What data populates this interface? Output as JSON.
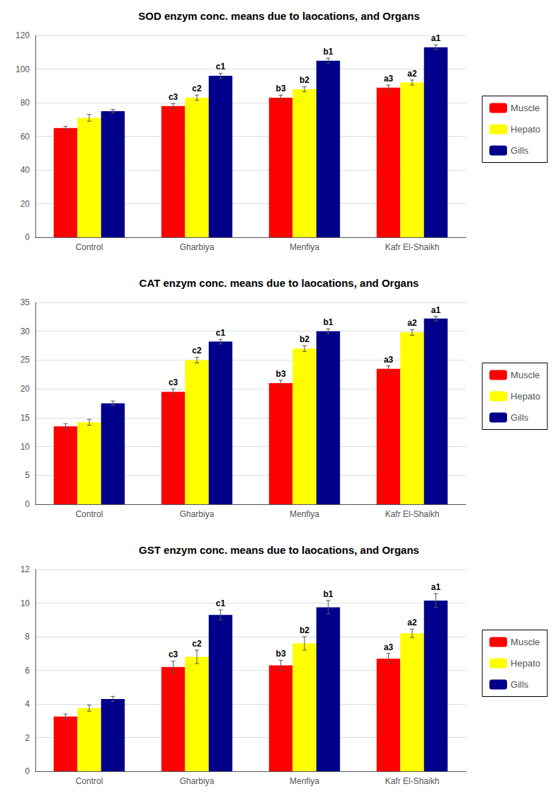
{
  "chart_data": [
    {
      "type": "bar",
      "title": "SOD enzym conc. means due to laocations, and Organs",
      "categories": [
        "Control",
        "Gharbiya",
        "Menfiya",
        "Kafr El-Shaikh"
      ],
      "series": [
        {
          "name": "Muscle",
          "color": "#FF0000",
          "values": [
            65,
            78,
            83,
            89
          ],
          "errors": [
            1.0,
            1.5,
            1.5,
            1.5
          ],
          "annotations": [
            null,
            "c3",
            "b3",
            "a3"
          ]
        },
        {
          "name": "Hepato",
          "color": "#FFFF00",
          "values": [
            71,
            83,
            88,
            92
          ],
          "errors": [
            2.0,
            1.5,
            1.5,
            1.5
          ],
          "annotations": [
            null,
            "c2",
            "b2",
            "a2"
          ]
        },
        {
          "name": "Gills",
          "color": "#00008B",
          "values": [
            75,
            96,
            105,
            113
          ],
          "errors": [
            1.0,
            1.5,
            1.5,
            1.5
          ],
          "annotations": [
            null,
            "c1",
            "b1",
            "a1"
          ]
        }
      ],
      "ylim": [
        0,
        120
      ],
      "yticks": [
        0,
        20,
        40,
        60,
        80,
        100,
        120
      ],
      "grid": true,
      "legend": "right"
    },
    {
      "type": "bar",
      "title": "CAT enzym conc. means due to laocations, and Organs",
      "categories": [
        "Control",
        "Gharbiya",
        "Menfiya",
        "Kafr El-Shaikh"
      ],
      "series": [
        {
          "name": "Muscle",
          "color": "#FF0000",
          "values": [
            13.5,
            19.5,
            21.0,
            23.5
          ],
          "errors": [
            0.5,
            0.5,
            0.5,
            0.5
          ],
          "annotations": [
            null,
            "c3",
            "b3",
            "a3"
          ]
        },
        {
          "name": "Hepato",
          "color": "#FFFF00",
          "values": [
            14.2,
            25.0,
            27.0,
            29.8
          ],
          "errors": [
            0.5,
            0.5,
            0.5,
            0.5
          ],
          "annotations": [
            null,
            "c2",
            "b2",
            "a2"
          ]
        },
        {
          "name": "Gills",
          "color": "#00008B",
          "values": [
            17.5,
            28.2,
            30.0,
            32.2
          ],
          "errors": [
            0.4,
            0.4,
            0.4,
            0.4
          ],
          "annotations": [
            null,
            "c1",
            "b1",
            "a1"
          ]
        }
      ],
      "ylim": [
        0,
        35
      ],
      "yticks": [
        0,
        5,
        10,
        15,
        20,
        25,
        30,
        35
      ],
      "grid": true,
      "legend": "right"
    },
    {
      "type": "bar",
      "title": "GST enzym conc. means due to laocations, and Organs",
      "categories": [
        "Control",
        "Gharbiya",
        "Menfiya",
        "Kafr El-Shaikh"
      ],
      "series": [
        {
          "name": "Muscle",
          "color": "#FF0000",
          "values": [
            3.25,
            6.2,
            6.3,
            6.7
          ],
          "errors": [
            0.15,
            0.35,
            0.3,
            0.3
          ],
          "annotations": [
            null,
            "c3",
            "b3",
            "a3"
          ]
        },
        {
          "name": "Hepato",
          "color": "#FFFF00",
          "values": [
            3.75,
            6.8,
            7.6,
            8.2
          ],
          "errors": [
            0.18,
            0.4,
            0.4,
            0.25
          ],
          "annotations": [
            null,
            "c2",
            "b2",
            "a2"
          ]
        },
        {
          "name": "Gills",
          "color": "#00008B",
          "values": [
            4.3,
            9.3,
            9.75,
            10.15
          ],
          "errors": [
            0.15,
            0.3,
            0.4,
            0.4
          ],
          "annotations": [
            null,
            "c1",
            "b1",
            "a1"
          ]
        }
      ],
      "ylim": [
        0,
        12
      ],
      "yticks": [
        0,
        2,
        4,
        6,
        8,
        10,
        12
      ],
      "grid": true,
      "legend": "right"
    }
  ]
}
